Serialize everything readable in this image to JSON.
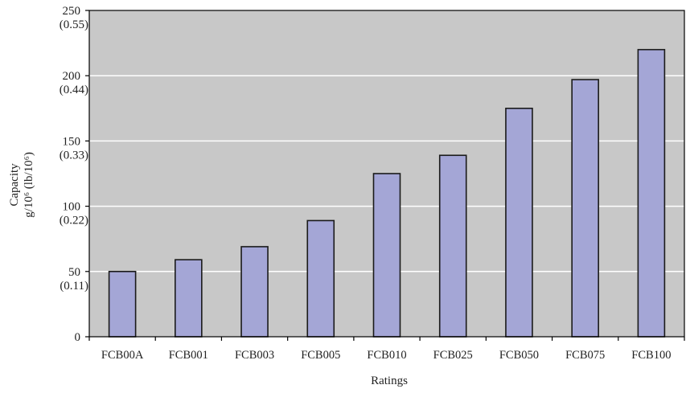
{
  "chart_data": {
    "type": "bar",
    "categories": [
      "FCB00A",
      "FCB001",
      "FCB003",
      "FCB005",
      "FCB010",
      "FCB025",
      "FCB050",
      "FCB075",
      "FCB100"
    ],
    "values": [
      50,
      59,
      69,
      89,
      125,
      139,
      175,
      197,
      220
    ],
    "xlabel": "Ratings",
    "ylabel_line1": "Capacity",
    "ylabel_line2": "g/10⁶ (lb/10⁶)",
    "ylim": [
      0,
      250
    ],
    "yticks": [
      "0",
      "50",
      "100",
      "150",
      "200",
      "250"
    ],
    "ytick_secondary": [
      "",
      "(0.11)",
      "(0.22)",
      "(0.33)",
      "(0.44)",
      "(0.55)"
    ],
    "grid": true,
    "legend": "none",
    "colors": {
      "plot_background": "#c8c8c8",
      "bar_fill": "#a4a6d6",
      "bar_stroke": "#1a1a1a",
      "grid": "#ffffff",
      "axis": "#000000"
    }
  }
}
